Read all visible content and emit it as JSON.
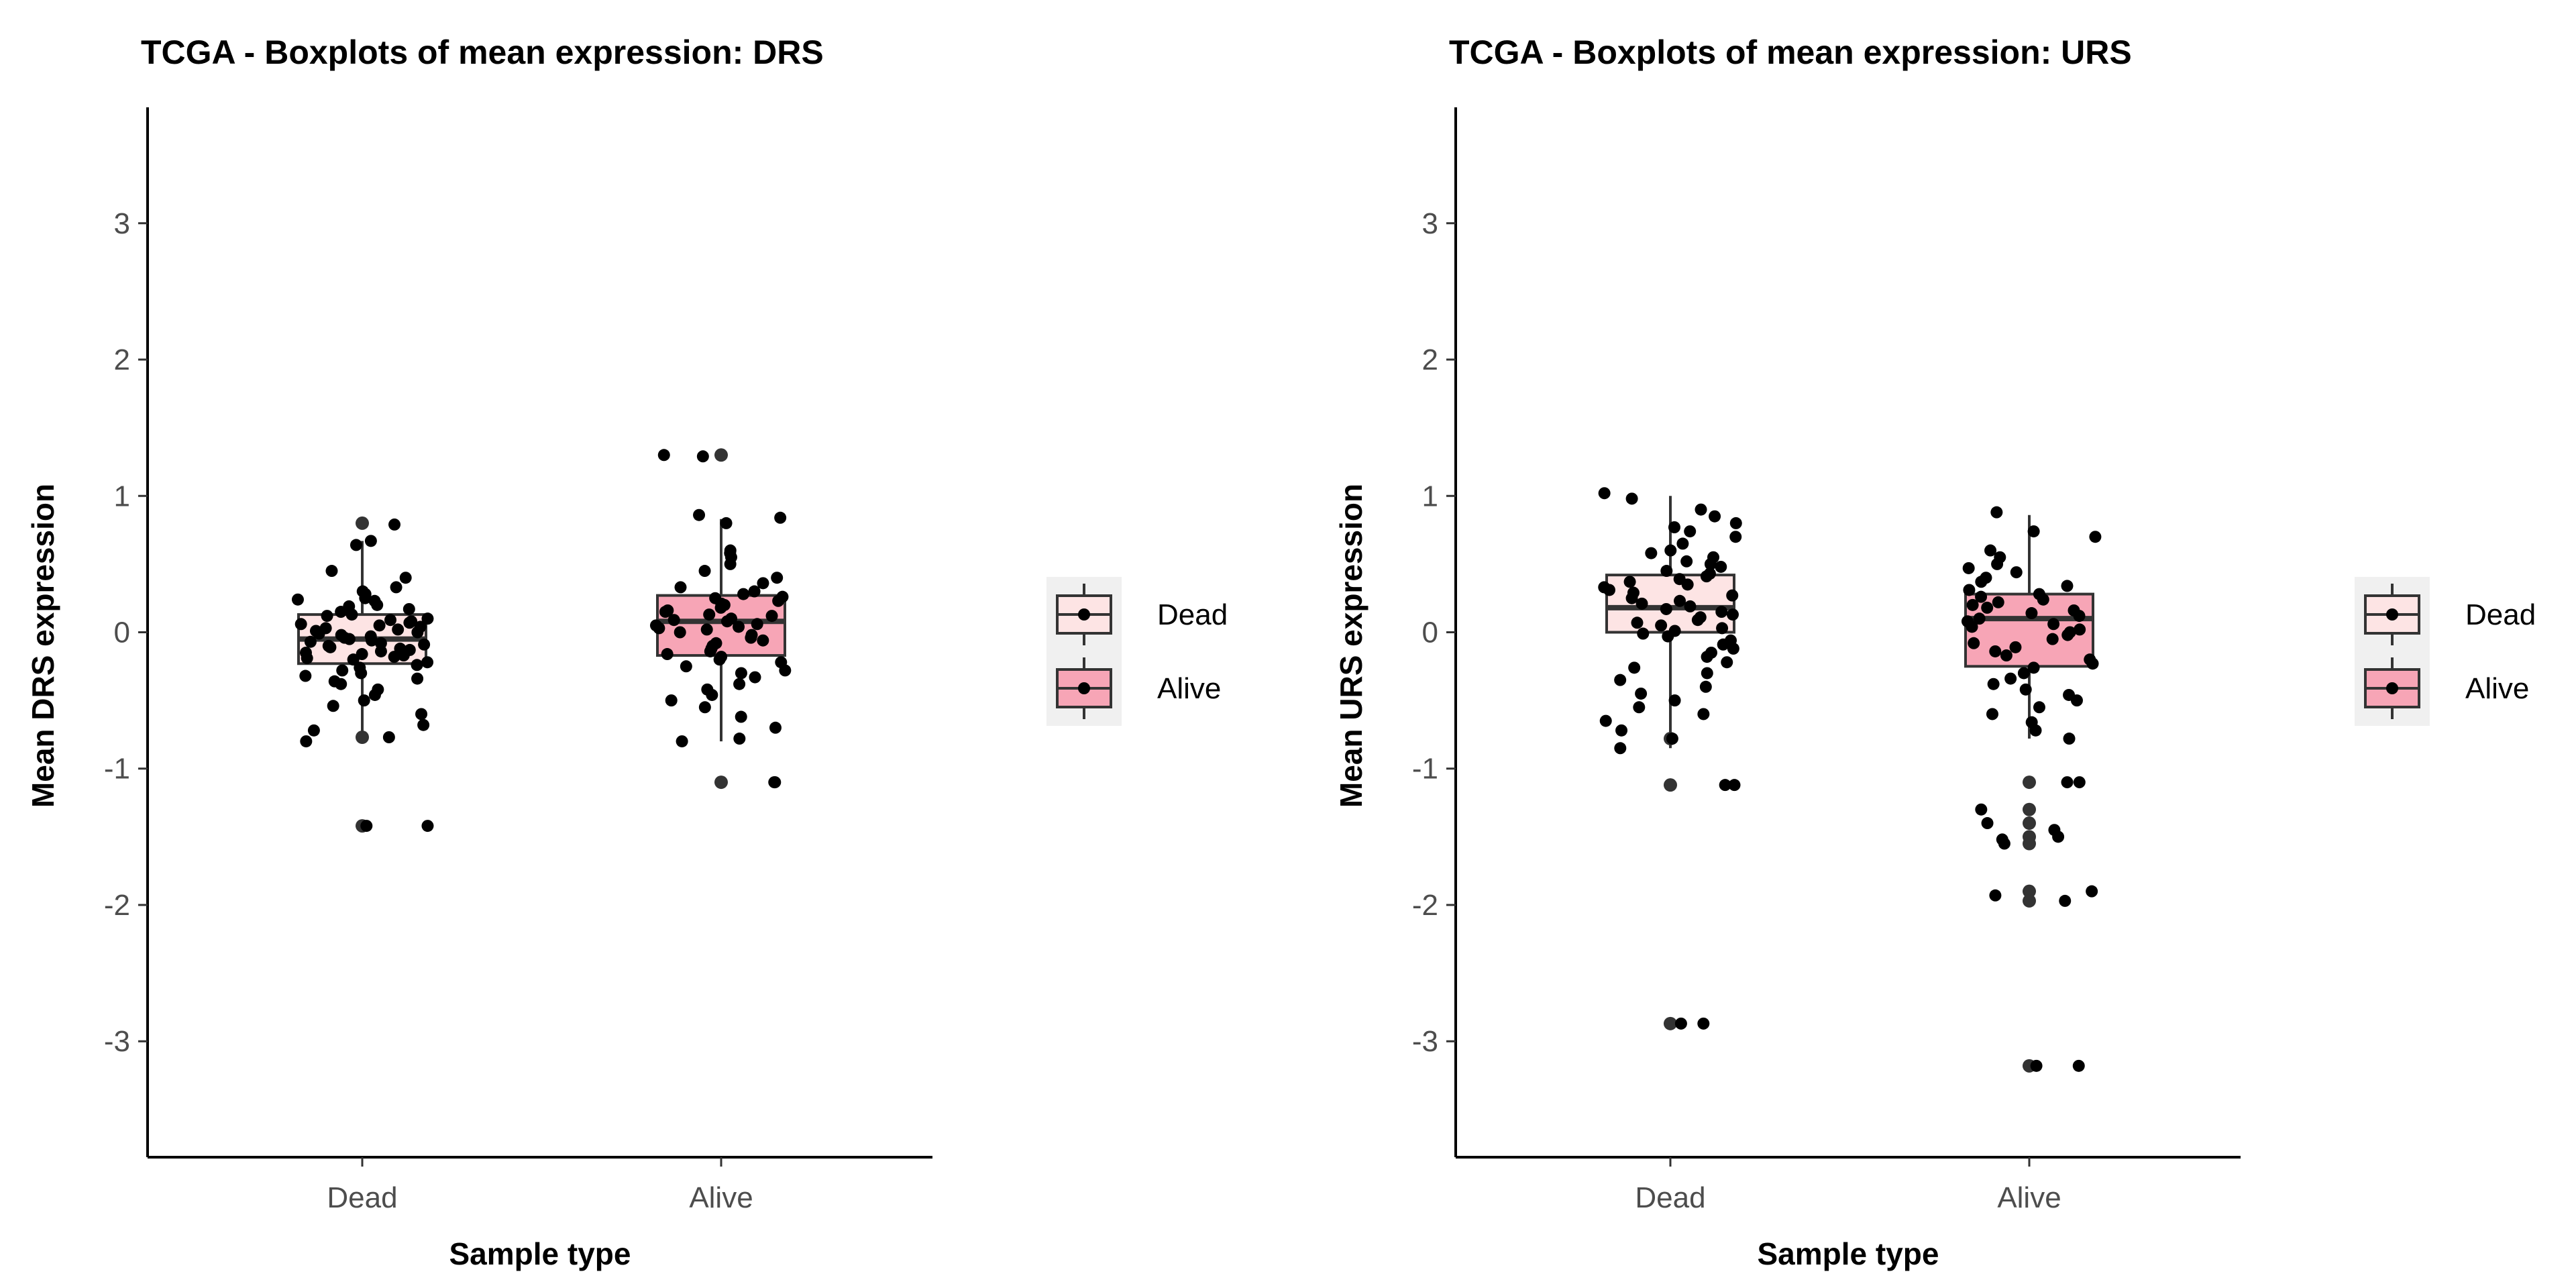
{
  "chart_data": [
    {
      "type": "box",
      "title": "TCGA - Boxplots of mean expression: DRS",
      "xlabel": "Sample type",
      "ylabel": "Mean DRS expression",
      "categories": [
        "Dead",
        "Alive"
      ],
      "yticks": [
        -3,
        -2,
        -1,
        0,
        1,
        2,
        3
      ],
      "ylim": [
        -3.85,
        3.85
      ],
      "grid": false,
      "legend": {
        "position": "right",
        "entries": [
          "Dead",
          "Alive"
        ]
      },
      "box_stats": [
        {
          "category": "Dead",
          "min": -0.8,
          "q1": -0.23,
          "median": -0.05,
          "q3": 0.13,
          "max": 0.67
        },
        {
          "category": "Alive",
          "min": -0.8,
          "q1": -0.17,
          "median": 0.08,
          "q3": 0.27,
          "max": 0.83
        }
      ],
      "outliers": [
        {
          "category": "Dead",
          "values": [
            0.8,
            -0.77,
            -1.42
          ]
        },
        {
          "category": "Alive",
          "values": [
            1.3,
            -1.1
          ]
        }
      ],
      "points": [
        {
          "category": "Dead",
          "values": [
            0.79,
            0.67,
            0.64,
            0.45,
            0.4,
            0.33,
            0.3,
            0.28,
            0.25,
            0.24,
            0.23,
            0.2,
            0.19,
            0.17,
            0.15,
            0.13,
            0.12,
            0.1,
            0.09,
            0.08,
            0.07,
            0.06,
            0.05,
            0.04,
            0.03,
            0.02,
            0.01,
            0.0,
            -0.01,
            -0.02,
            -0.03,
            -0.04,
            -0.05,
            -0.06,
            -0.07,
            -0.08,
            -0.09,
            -0.1,
            -0.11,
            -0.12,
            -0.13,
            -0.14,
            -0.15,
            -0.16,
            -0.17,
            -0.18,
            -0.19,
            -0.2,
            -0.22,
            -0.24,
            -0.26,
            -0.28,
            -0.3,
            -0.32,
            -0.34,
            -0.36,
            -0.38,
            -0.42,
            -0.46,
            -0.5,
            -0.54,
            -0.6,
            -0.68,
            -0.72,
            -0.77,
            -0.8,
            -1.42,
            -1.42
          ]
        },
        {
          "category": "Alive",
          "values": [
            1.3,
            1.29,
            0.86,
            0.84,
            0.8,
            0.6,
            0.58,
            0.55,
            0.5,
            0.45,
            0.4,
            0.36,
            0.33,
            0.3,
            0.28,
            0.26,
            0.25,
            0.23,
            0.21,
            0.2,
            0.18,
            0.16,
            0.15,
            0.13,
            0.12,
            0.1,
            0.09,
            0.08,
            0.06,
            0.05,
            0.04,
            0.03,
            0.02,
            0.0,
            -0.02,
            -0.04,
            -0.06,
            -0.08,
            -0.1,
            -0.12,
            -0.14,
            -0.16,
            -0.18,
            -0.2,
            -0.22,
            -0.25,
            -0.28,
            -0.3,
            -0.33,
            -0.38,
            -0.42,
            -0.46,
            -0.5,
            -0.55,
            -0.62,
            -0.7,
            -0.78,
            -0.8,
            -1.1,
            -1.1
          ]
        }
      ]
    },
    {
      "type": "box",
      "title": "TCGA - Boxplots of mean expression: URS",
      "xlabel": "Sample type",
      "ylabel": "Mean URS expression",
      "categories": [
        "Dead",
        "Alive"
      ],
      "yticks": [
        -3,
        -2,
        -1,
        0,
        1,
        2,
        3
      ],
      "ylim": [
        -3.85,
        3.85
      ],
      "grid": false,
      "legend": {
        "position": "right",
        "entries": [
          "Dead",
          "Alive"
        ]
      },
      "box_stats": [
        {
          "category": "Dead",
          "min": -0.85,
          "q1": 0.0,
          "median": 0.18,
          "q3": 0.42,
          "max": 1.0
        },
        {
          "category": "Alive",
          "min": -0.78,
          "q1": -0.25,
          "median": 0.1,
          "q3": 0.28,
          "max": 0.86
        }
      ],
      "outliers": [
        {
          "category": "Dead",
          "values": [
            -0.78,
            -1.12,
            -2.87
          ]
        },
        {
          "category": "Alive",
          "values": [
            -1.1,
            -1.3,
            -1.4,
            -1.5,
            -1.55,
            -1.9,
            -1.97,
            -3.18
          ]
        }
      ],
      "points": [
        {
          "category": "Dead",
          "values": [
            1.02,
            0.98,
            0.9,
            0.85,
            0.8,
            0.77,
            0.74,
            0.7,
            0.65,
            0.6,
            0.58,
            0.55,
            0.52,
            0.5,
            0.48,
            0.45,
            0.43,
            0.41,
            0.39,
            0.37,
            0.35,
            0.33,
            0.31,
            0.29,
            0.27,
            0.25,
            0.23,
            0.21,
            0.19,
            0.17,
            0.15,
            0.13,
            0.11,
            0.09,
            0.07,
            0.05,
            0.03,
            0.01,
            -0.01,
            -0.03,
            -0.06,
            -0.09,
            -0.12,
            -0.15,
            -0.18,
            -0.22,
            -0.26,
            -0.3,
            -0.35,
            -0.4,
            -0.45,
            -0.5,
            -0.55,
            -0.6,
            -0.65,
            -0.72,
            -0.78,
            -0.85,
            -1.12,
            -1.12,
            -2.87,
            -2.87
          ]
        },
        {
          "category": "Alive",
          "values": [
            0.88,
            0.74,
            0.7,
            0.6,
            0.55,
            0.5,
            0.47,
            0.44,
            0.4,
            0.37,
            0.34,
            0.31,
            0.28,
            0.26,
            0.24,
            0.22,
            0.2,
            0.18,
            0.16,
            0.14,
            0.12,
            0.1,
            0.08,
            0.06,
            0.04,
            0.02,
            0.0,
            -0.02,
            -0.05,
            -0.08,
            -0.11,
            -0.14,
            -0.17,
            -0.2,
            -0.23,
            -0.26,
            -0.3,
            -0.34,
            -0.38,
            -0.42,
            -0.46,
            -0.5,
            -0.55,
            -0.6,
            -0.66,
            -0.72,
            -0.78,
            -1.1,
            -1.1,
            -1.3,
            -1.4,
            -1.45,
            -1.5,
            -1.52,
            -1.55,
            -1.9,
            -1.93,
            -1.97,
            -3.18,
            -3.18
          ]
        }
      ]
    }
  ],
  "colors": {
    "dead_fill": "#fde4e4",
    "alive_fill": "#f7a5b6",
    "box_line": "#333333",
    "point": "#000000",
    "axis": "#000000",
    "legend_bg": "#f0f0f0"
  }
}
